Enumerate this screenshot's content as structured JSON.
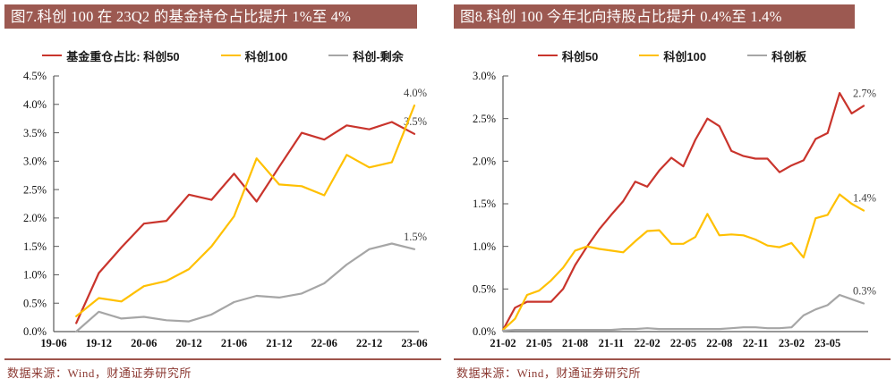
{
  "colors": {
    "title_bg": "#9C5951",
    "title_text": "#FFFFFF",
    "axis": "#595959",
    "annotation": "#3F3F3F",
    "divider": "#9E544C",
    "source_text": "#8C3A33",
    "series_red": "#C9342C",
    "series_yellow": "#FFC000",
    "series_gray": "#A6A6A6"
  },
  "source_note": "数据来源：Wind，财通证券研究所",
  "chart_data": [
    {
      "type": "line",
      "title": "图7.科创 100 在 23Q2 的基金持仓占比提升 1%至 4%",
      "source": "数据来源：Wind，财通证券研究所",
      "ylim": [
        0,
        4.5
      ],
      "y_step": 0.5,
      "y_format": "percent",
      "grid": false,
      "legend_position": "top",
      "x_tick_labels": [
        "19-06",
        "19-12",
        "20-06",
        "20-12",
        "21-06",
        "21-12",
        "22-06",
        "22-12",
        "23-06"
      ],
      "x_tick_step_frac": 0.125,
      "x_points": [
        "19-09",
        "19-12",
        "20-03",
        "20-06",
        "20-09",
        "20-12",
        "21-03",
        "21-06",
        "21-09",
        "21-12",
        "22-03",
        "22-06",
        "22-09",
        "22-12",
        "23-03",
        "23-06"
      ],
      "x_start_frac": 0.0625,
      "x_step_frac": 0.0625,
      "series": [
        {
          "key": "kechuang50",
          "name": "基金重仓占比: 科创50",
          "color": "#C9342C",
          "end_label": "3.5%",
          "values": [
            0.15,
            1.03,
            1.48,
            1.9,
            1.95,
            2.41,
            2.32,
            2.78,
            2.29,
            2.9,
            3.5,
            3.38,
            3.63,
            3.56,
            3.69,
            3.48
          ]
        },
        {
          "key": "kechuang100",
          "name": "科创100",
          "color": "#FFC000",
          "end_label": "4.0%",
          "values": [
            0.27,
            0.59,
            0.53,
            0.8,
            0.89,
            1.1,
            1.5,
            2.03,
            3.05,
            2.59,
            2.56,
            2.4,
            3.11,
            2.89,
            2.98,
            3.98
          ]
        },
        {
          "key": "kechuang-shengyu",
          "name": "科创-剩余",
          "color": "#A6A6A6",
          "end_label": "1.5%",
          "values": [
            0.0,
            0.35,
            0.23,
            0.26,
            0.2,
            0.18,
            0.3,
            0.52,
            0.63,
            0.6,
            0.67,
            0.85,
            1.18,
            1.45,
            1.55,
            1.45
          ]
        }
      ]
    },
    {
      "type": "line",
      "title": "图8.科创 100 今年北向持股占比提升 0.4%至 1.4%",
      "source": "数据来源：Wind，财通证券研究所",
      "ylim": [
        0,
        3.0
      ],
      "y_step": 0.5,
      "y_format": "percent",
      "grid": false,
      "legend_position": "top",
      "x_tick_labels": [
        "21-02",
        "21-05",
        "21-08",
        "21-11",
        "22-02",
        "22-05",
        "22-08",
        "22-11",
        "23-02",
        "23-05"
      ],
      "x_tick_step_frac": 0.1,
      "x_points": [
        "21-02",
        "21-03",
        "21-04",
        "21-05",
        "21-06",
        "21-07",
        "21-08",
        "21-09",
        "21-10",
        "21-11",
        "21-12",
        "22-01",
        "22-02",
        "22-03",
        "22-04",
        "22-05",
        "22-06",
        "22-07",
        "22-08",
        "22-09",
        "22-10",
        "22-11",
        "22-12",
        "23-01",
        "23-02",
        "23-03",
        "23-04",
        "23-05",
        "23-06",
        "23-07",
        "23-08"
      ],
      "x_start_frac": 0,
      "x_step_frac": 0.033333,
      "series": [
        {
          "key": "kechuang50",
          "name": "科创50",
          "color": "#C9342C",
          "end_label": "2.7%",
          "values": [
            0.02,
            0.28,
            0.35,
            0.35,
            0.35,
            0.5,
            0.78,
            1.0,
            1.2,
            1.37,
            1.53,
            1.76,
            1.7,
            1.89,
            2.04,
            1.94,
            2.25,
            2.5,
            2.41,
            2.12,
            2.06,
            2.03,
            2.03,
            1.87,
            1.95,
            2.01,
            2.26,
            2.33,
            2.8,
            2.56,
            2.65
          ]
        },
        {
          "key": "kechuang100",
          "name": "科创100",
          "color": "#FFC000",
          "end_label": "1.4%",
          "values": [
            0.02,
            0.15,
            0.43,
            0.48,
            0.6,
            0.75,
            0.95,
            1.0,
            0.97,
            0.95,
            0.93,
            1.06,
            1.18,
            1.19,
            1.03,
            1.03,
            1.11,
            1.38,
            1.13,
            1.14,
            1.13,
            1.08,
            1.01,
            0.99,
            1.04,
            0.87,
            1.33,
            1.37,
            1.61,
            1.5,
            1.42
          ]
        },
        {
          "key": "kechuangban",
          "name": "科创板",
          "color": "#A6A6A6",
          "end_label": "0.3%",
          "values": [
            0.01,
            0.02,
            0.02,
            0.02,
            0.02,
            0.02,
            0.02,
            0.02,
            0.02,
            0.02,
            0.03,
            0.03,
            0.04,
            0.03,
            0.03,
            0.03,
            0.03,
            0.03,
            0.03,
            0.04,
            0.05,
            0.05,
            0.04,
            0.04,
            0.05,
            0.19,
            0.26,
            0.31,
            0.43,
            0.38,
            0.33
          ]
        }
      ]
    }
  ]
}
